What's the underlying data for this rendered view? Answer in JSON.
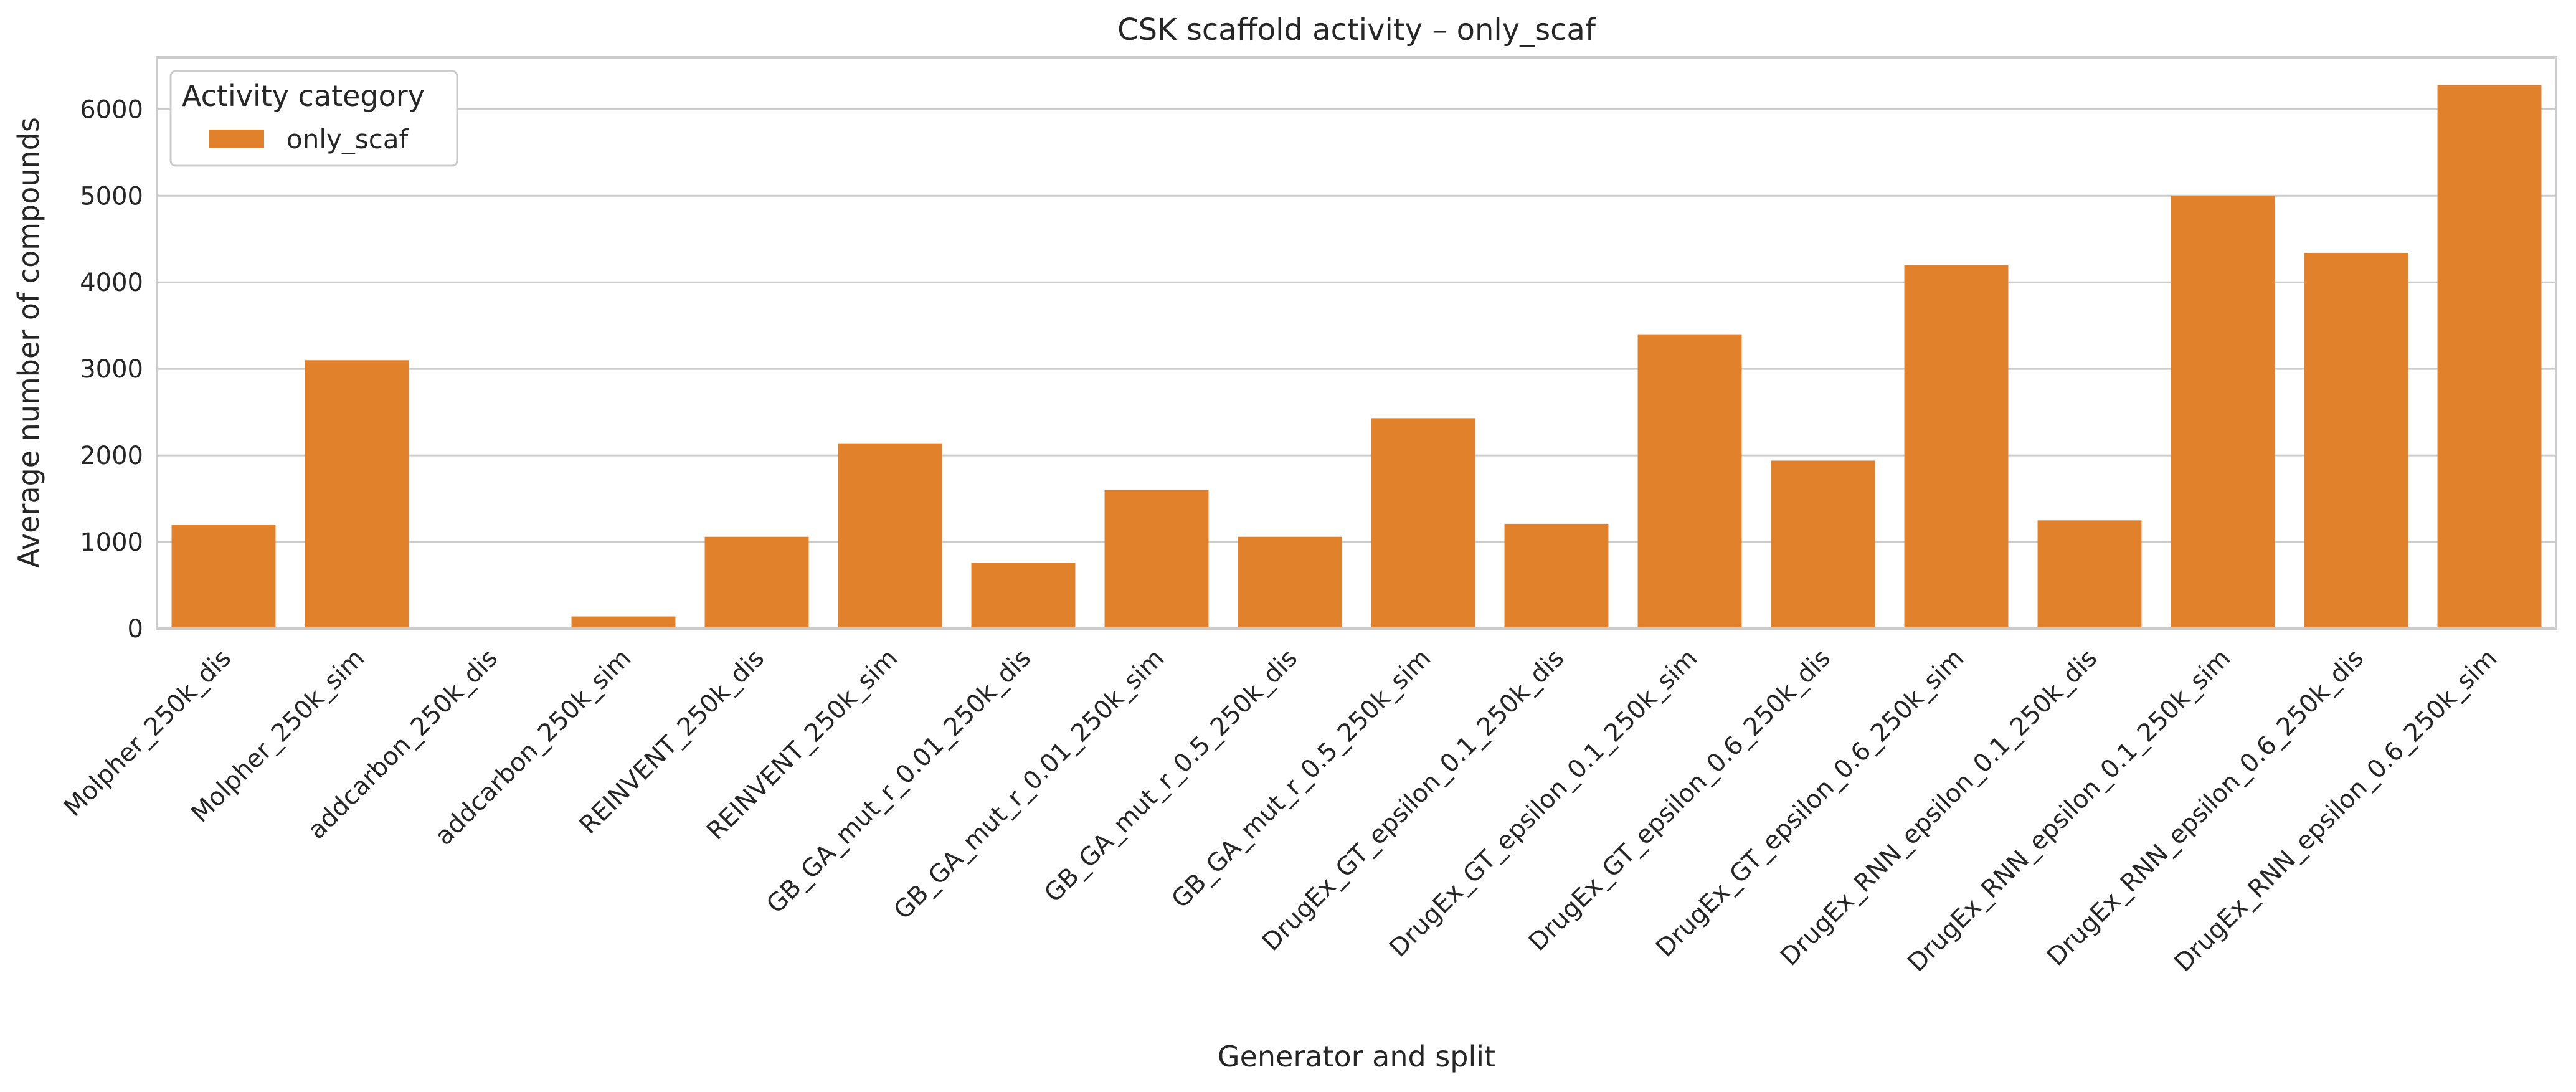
{
  "chart_data": {
    "type": "bar",
    "title": "CSK scaffold activity – only_scaf",
    "xlabel": "Generator and split",
    "ylabel": "Average number of compounds",
    "ylim": [
      0,
      6600
    ],
    "yticks": [
      0,
      1000,
      2000,
      3000,
      4000,
      5000,
      6000
    ],
    "grid": "horizontal",
    "legend": {
      "title": "Activity category",
      "placement": "top-left",
      "entries": [
        "only_scaf"
      ]
    },
    "categories": [
      "Molpher_250k_dis",
      "Molpher_250k_sim",
      "addcarbon_250k_dis",
      "addcarbon_250k_sim",
      "REINVENT_250k_dis",
      "REINVENT_250k_sim",
      "GB_GA_mut_r_0.01_250k_dis",
      "GB_GA_mut_r_0.01_250k_sim",
      "GB_GA_mut_r_0.5_250k_dis",
      "GB_GA_mut_r_0.5_250k_sim",
      "DrugEx_GT_epsilon_0.1_250k_dis",
      "DrugEx_GT_epsilon_0.1_250k_sim",
      "DrugEx_GT_epsilon_0.6_250k_dis",
      "DrugEx_GT_epsilon_0.6_250k_sim",
      "DrugEx_RNN_epsilon_0.1_250k_dis",
      "DrugEx_RNN_epsilon_0.1_250k_sim",
      "DrugEx_RNN_epsilon_0.6_250k_dis",
      "DrugEx_RNN_epsilon_0.6_250k_sim"
    ],
    "series": [
      {
        "name": "only_scaf",
        "color": "#e1812c",
        "values": [
          1200,
          3100,
          0,
          140,
          1060,
          2140,
          760,
          1600,
          1060,
          2430,
          1210,
          3400,
          1940,
          4200,
          1250,
          5000,
          4340,
          6280
        ]
      }
    ]
  }
}
